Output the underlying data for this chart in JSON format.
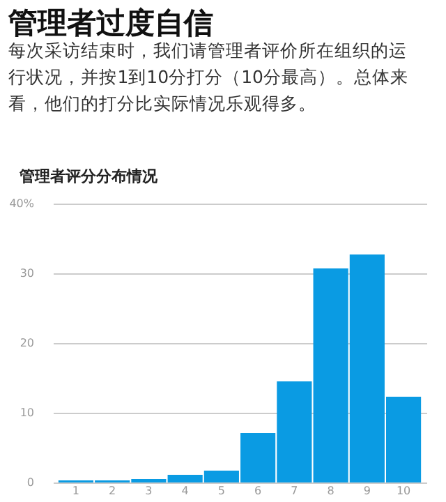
{
  "chart_data": {
    "type": "bar",
    "title": "管理者过度自信",
    "subtitle": "每次采访结束时，我们请管理者评价所在组织的运行状况，并按1到10分打分（10分最高）。总体来看，他们的打分比实际情况乐观得多。",
    "annotations": [
      "管理者评分分布情况"
    ],
    "categories": [
      "1",
      "2",
      "3",
      "4",
      "5",
      "6",
      "7",
      "8",
      "9",
      "10"
    ],
    "values": [
      0.3,
      0.3,
      0.5,
      1.1,
      1.7,
      7.1,
      14.5,
      30.7,
      32.7,
      12.3
    ],
    "color": "#0a9be3",
    "ylim": [
      0,
      40
    ],
    "yticks": [
      0,
      10,
      20,
      30,
      {
        "value": 40,
        "label": "40%"
      }
    ],
    "grid": "y"
  }
}
